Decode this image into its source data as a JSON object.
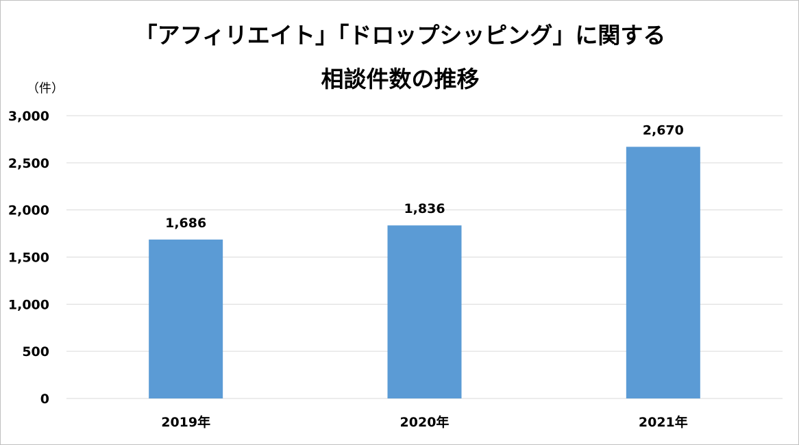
{
  "title_line1": "「アフィリエイト」「ドロップシッピング」に関する",
  "title_line2": "相談件数の推移",
  "unit_label": "（件）",
  "colors": {
    "bar": "#5b9bd5",
    "grid": "#d9d9d9",
    "text": "#000000",
    "border": "#bfbfbf"
  },
  "chart_data": {
    "type": "bar",
    "title": "「アフィリエイト」「ドロップシッピング」に関する 相談件数の推移",
    "xlabel": "",
    "ylabel": "（件）",
    "categories": [
      "2019年",
      "2020年",
      "2021年"
    ],
    "values": [
      1686,
      1836,
      2670
    ],
    "data_labels": [
      "1,686",
      "1,836",
      "2,670"
    ],
    "ylim": [
      0,
      3000
    ],
    "yticks": [
      0,
      500,
      1000,
      1500,
      2000,
      2500,
      3000
    ],
    "ytick_labels": [
      "0",
      "500",
      "1,000",
      "1,500",
      "2,000",
      "2,500",
      "3,000"
    ],
    "grid": true,
    "legend": "none"
  }
}
